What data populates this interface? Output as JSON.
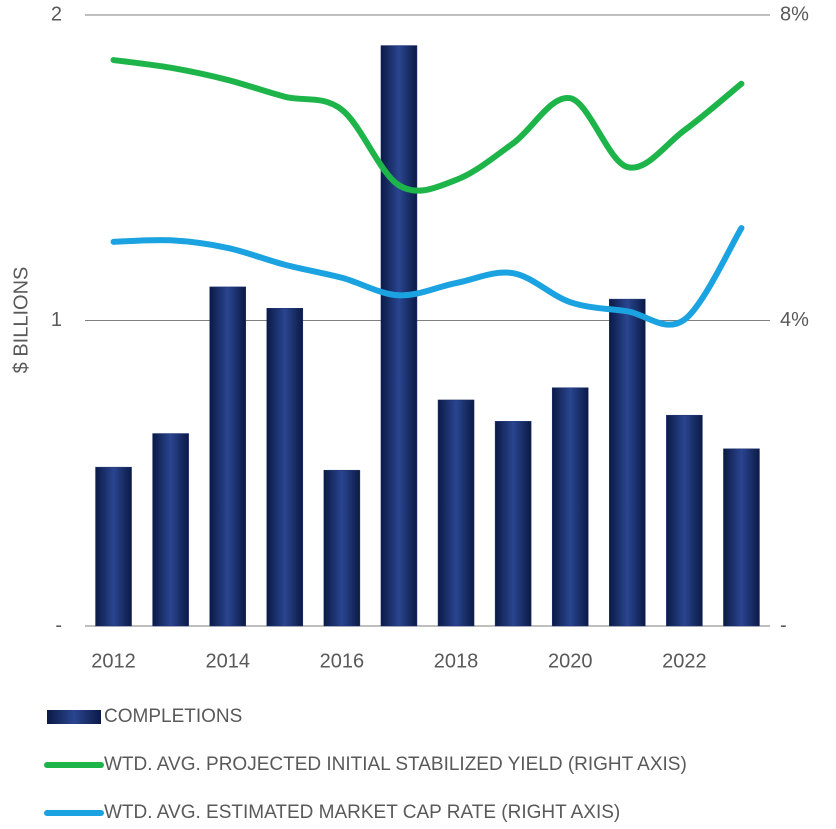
{
  "chart_data": {
    "type": "bar-line",
    "ylabel": "$ BILLIONS",
    "categories": [
      "2012",
      null,
      "2014",
      null,
      "2016",
      null,
      "2018",
      null,
      "2020",
      null,
      "2022",
      null
    ],
    "ylim": [
      0,
      2
    ],
    "yticks": [
      {
        "value": 0,
        "label": "-"
      },
      1,
      2
    ],
    "y2lim": [
      0,
      8
    ],
    "y2ticks": [
      {
        "value": 0,
        "label": "-"
      },
      {
        "value": 4,
        "label": "4%"
      },
      {
        "value": 8,
        "label": "8%"
      }
    ],
    "grid": true,
    "legend": "bottom",
    "series": [
      {
        "name": "COMPLETIONS",
        "kind": "bar",
        "color": "#1a2f6e",
        "values": [
          0.52,
          0.63,
          1.11,
          1.04,
          0.51,
          1.9,
          0.74,
          0.67,
          0.78,
          1.07,
          0.69,
          0.58
        ]
      },
      {
        "name": "WTD. AVG. PROJECTED INITIAL STABILIZED YIELD (RIGHT AXIS)",
        "kind": "line",
        "axis": "y2",
        "color": "#1db54a",
        "values": [
          7.41,
          7.31,
          7.15,
          6.93,
          6.76,
          5.77,
          5.84,
          6.32,
          6.91,
          6.01,
          6.49,
          7.1
        ]
      },
      {
        "name": "WTD. AVG. ESTIMATED MARKET CAP RATE (RIGHT AXIS)",
        "kind": "line",
        "axis": "y2",
        "color": "#1aa3e0",
        "values": [
          5.03,
          5.05,
          4.95,
          4.73,
          4.56,
          4.33,
          4.49,
          4.62,
          4.24,
          4.12,
          4.01,
          5.21
        ]
      }
    ]
  }
}
